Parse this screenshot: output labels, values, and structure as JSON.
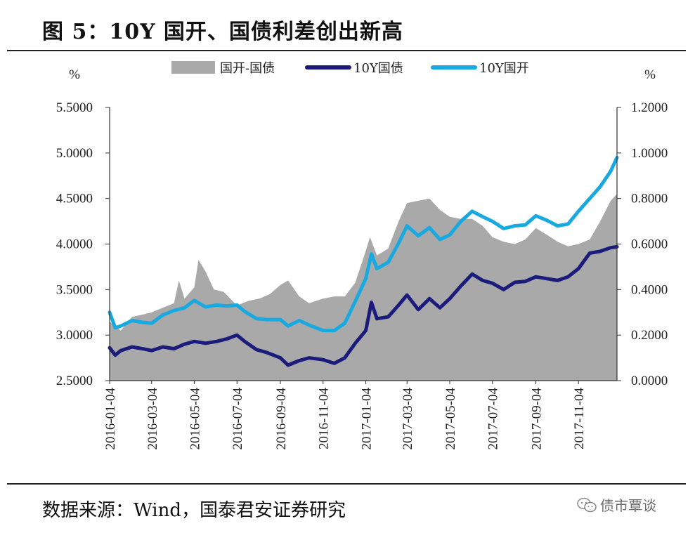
{
  "figure": {
    "title": "图 5：10Y 国开、国债利差创出新高",
    "source": "数据来源：Wind，国泰君安证券研究",
    "watermark": "债市覃谈",
    "watermark_icon": "wechat-icon"
  },
  "chart_data": {
    "type": "line",
    "title": "图 5：10Y 国开、国债利差创出新高",
    "left_axis": {
      "unit_label": "%",
      "ylim": [
        2.5,
        5.5
      ],
      "ticks": [
        "5.5000",
        "5.0000",
        "4.5000",
        "4.0000",
        "3.5000",
        "3.0000",
        "2.5000"
      ]
    },
    "right_axis": {
      "unit_label": "%",
      "ylim": [
        0.0,
        1.2
      ],
      "ticks": [
        "1.2000",
        "1.0000",
        "0.8000",
        "0.6000",
        "0.4000",
        "0.2000",
        "0.0000"
      ]
    },
    "x_range": [
      "2016-01-04",
      "2017-12-29"
    ],
    "x_ticks": [
      "2016-01-04",
      "2016-03-04",
      "2016-05-04",
      "2016-07-04",
      "2016-09-04",
      "2016-11-04",
      "2017-01-04",
      "2017-03-04",
      "2017-05-04",
      "2017-07-04",
      "2017-09-04",
      "2017-11-04"
    ],
    "legend": {
      "placement": "top",
      "entries": [
        "国开-国债",
        "10Y国债",
        "10Y国开"
      ]
    },
    "grid": false,
    "colors": {
      "spread": "#a9a9a9",
      "gov": "#1b1b7c",
      "cdb": "#19a9e1"
    },
    "series": [
      {
        "name": "国开-国债",
        "type": "area",
        "axis": "right",
        "points": [
          [
            "2016-01-04",
            0.26
          ],
          [
            "2016-01-20",
            0.22
          ],
          [
            "2016-02-05",
            0.28
          ],
          [
            "2016-02-20",
            0.29
          ],
          [
            "2016-03-04",
            0.3
          ],
          [
            "2016-03-20",
            0.32
          ],
          [
            "2016-04-05",
            0.34
          ],
          [
            "2016-04-12",
            0.44
          ],
          [
            "2016-04-20",
            0.36
          ],
          [
            "2016-05-04",
            0.41
          ],
          [
            "2016-05-10",
            0.53
          ],
          [
            "2016-05-20",
            0.48
          ],
          [
            "2016-06-01",
            0.4
          ],
          [
            "2016-06-15",
            0.39
          ],
          [
            "2016-07-04",
            0.33
          ],
          [
            "2016-07-20",
            0.35
          ],
          [
            "2016-08-05",
            0.36
          ],
          [
            "2016-08-20",
            0.38
          ],
          [
            "2016-09-04",
            0.42
          ],
          [
            "2016-09-15",
            0.44
          ],
          [
            "2016-10-01",
            0.37
          ],
          [
            "2016-10-15",
            0.34
          ],
          [
            "2016-11-04",
            0.36
          ],
          [
            "2016-11-20",
            0.37
          ],
          [
            "2016-12-05",
            0.37
          ],
          [
            "2016-12-20",
            0.43
          ],
          [
            "2017-01-04",
            0.57
          ],
          [
            "2017-01-10",
            0.63
          ],
          [
            "2017-01-20",
            0.55
          ],
          [
            "2017-02-05",
            0.58
          ],
          [
            "2017-02-20",
            0.7
          ],
          [
            "2017-03-04",
            0.78
          ],
          [
            "2017-03-20",
            0.79
          ],
          [
            "2017-04-05",
            0.8
          ],
          [
            "2017-04-20",
            0.75
          ],
          [
            "2017-05-04",
            0.72
          ],
          [
            "2017-05-20",
            0.71
          ],
          [
            "2017-06-05",
            0.71
          ],
          [
            "2017-06-20",
            0.68
          ],
          [
            "2017-07-04",
            0.63
          ],
          [
            "2017-07-20",
            0.61
          ],
          [
            "2017-08-05",
            0.6
          ],
          [
            "2017-08-20",
            0.62
          ],
          [
            "2017-09-04",
            0.67
          ],
          [
            "2017-09-20",
            0.64
          ],
          [
            "2017-10-05",
            0.61
          ],
          [
            "2017-10-20",
            0.59
          ],
          [
            "2017-11-04",
            0.6
          ],
          [
            "2017-11-20",
            0.62
          ],
          [
            "2017-12-05",
            0.7
          ],
          [
            "2017-12-20",
            0.79
          ],
          [
            "2017-12-29",
            0.82
          ]
        ]
      },
      {
        "name": "10Y国债",
        "type": "line",
        "axis": "left",
        "points": [
          [
            "2016-01-04",
            2.86
          ],
          [
            "2016-01-12",
            2.78
          ],
          [
            "2016-01-20",
            2.83
          ],
          [
            "2016-02-05",
            2.87
          ],
          [
            "2016-02-20",
            2.85
          ],
          [
            "2016-03-04",
            2.83
          ],
          [
            "2016-03-20",
            2.87
          ],
          [
            "2016-04-05",
            2.85
          ],
          [
            "2016-04-20",
            2.9
          ],
          [
            "2016-05-04",
            2.93
          ],
          [
            "2016-05-20",
            2.91
          ],
          [
            "2016-06-05",
            2.93
          ],
          [
            "2016-06-20",
            2.96
          ],
          [
            "2016-07-04",
            3.0
          ],
          [
            "2016-07-15",
            2.93
          ],
          [
            "2016-08-01",
            2.84
          ],
          [
            "2016-08-15",
            2.81
          ],
          [
            "2016-09-04",
            2.75
          ],
          [
            "2016-09-15",
            2.67
          ],
          [
            "2016-10-01",
            2.72
          ],
          [
            "2016-10-15",
            2.75
          ],
          [
            "2016-11-04",
            2.73
          ],
          [
            "2016-11-20",
            2.69
          ],
          [
            "2016-12-05",
            2.75
          ],
          [
            "2016-12-20",
            2.91
          ],
          [
            "2017-01-04",
            3.05
          ],
          [
            "2017-01-12",
            3.36
          ],
          [
            "2017-01-20",
            3.18
          ],
          [
            "2017-02-05",
            3.2
          ],
          [
            "2017-02-20",
            3.33
          ],
          [
            "2017-03-04",
            3.44
          ],
          [
            "2017-03-20",
            3.28
          ],
          [
            "2017-04-05",
            3.4
          ],
          [
            "2017-04-20",
            3.3
          ],
          [
            "2017-05-04",
            3.4
          ],
          [
            "2017-05-20",
            3.54
          ],
          [
            "2017-06-05",
            3.67
          ],
          [
            "2017-06-20",
            3.6
          ],
          [
            "2017-07-04",
            3.57
          ],
          [
            "2017-07-20",
            3.5
          ],
          [
            "2017-08-05",
            3.58
          ],
          [
            "2017-08-20",
            3.59
          ],
          [
            "2017-09-04",
            3.64
          ],
          [
            "2017-09-20",
            3.62
          ],
          [
            "2017-10-05",
            3.6
          ],
          [
            "2017-10-20",
            3.64
          ],
          [
            "2017-11-04",
            3.73
          ],
          [
            "2017-11-20",
            3.9
          ],
          [
            "2017-12-05",
            3.92
          ],
          [
            "2017-12-20",
            3.96
          ],
          [
            "2017-12-29",
            3.97
          ]
        ]
      },
      {
        "name": "10Y国开",
        "type": "line",
        "axis": "left",
        "points": [
          [
            "2016-01-04",
            3.25
          ],
          [
            "2016-01-12",
            3.08
          ],
          [
            "2016-01-20",
            3.1
          ],
          [
            "2016-02-05",
            3.16
          ],
          [
            "2016-02-20",
            3.14
          ],
          [
            "2016-03-04",
            3.13
          ],
          [
            "2016-03-20",
            3.22
          ],
          [
            "2016-04-05",
            3.27
          ],
          [
            "2016-04-20",
            3.3
          ],
          [
            "2016-05-04",
            3.38
          ],
          [
            "2016-05-20",
            3.31
          ],
          [
            "2016-06-05",
            3.33
          ],
          [
            "2016-06-20",
            3.32
          ],
          [
            "2016-07-04",
            3.33
          ],
          [
            "2016-07-15",
            3.26
          ],
          [
            "2016-08-01",
            3.18
          ],
          [
            "2016-08-15",
            3.17
          ],
          [
            "2016-09-04",
            3.17
          ],
          [
            "2016-09-15",
            3.1
          ],
          [
            "2016-10-01",
            3.16
          ],
          [
            "2016-10-15",
            3.11
          ],
          [
            "2016-11-04",
            3.05
          ],
          [
            "2016-11-20",
            3.05
          ],
          [
            "2016-12-05",
            3.13
          ],
          [
            "2016-12-20",
            3.37
          ],
          [
            "2017-01-04",
            3.62
          ],
          [
            "2017-01-12",
            3.89
          ],
          [
            "2017-01-20",
            3.73
          ],
          [
            "2017-02-05",
            3.8
          ],
          [
            "2017-02-20",
            4.01
          ],
          [
            "2017-03-04",
            4.2
          ],
          [
            "2017-03-20",
            4.09
          ],
          [
            "2017-04-05",
            4.18
          ],
          [
            "2017-04-20",
            4.05
          ],
          [
            "2017-05-04",
            4.1
          ],
          [
            "2017-05-20",
            4.25
          ],
          [
            "2017-06-05",
            4.36
          ],
          [
            "2017-06-20",
            4.3
          ],
          [
            "2017-07-04",
            4.25
          ],
          [
            "2017-07-20",
            4.17
          ],
          [
            "2017-08-05",
            4.2
          ],
          [
            "2017-08-20",
            4.21
          ],
          [
            "2017-09-04",
            4.31
          ],
          [
            "2017-09-20",
            4.26
          ],
          [
            "2017-10-05",
            4.2
          ],
          [
            "2017-10-20",
            4.22
          ],
          [
            "2017-11-04",
            4.36
          ],
          [
            "2017-11-20",
            4.5
          ],
          [
            "2017-12-05",
            4.63
          ],
          [
            "2017-12-20",
            4.8
          ],
          [
            "2017-12-29",
            4.95
          ]
        ]
      }
    ]
  }
}
